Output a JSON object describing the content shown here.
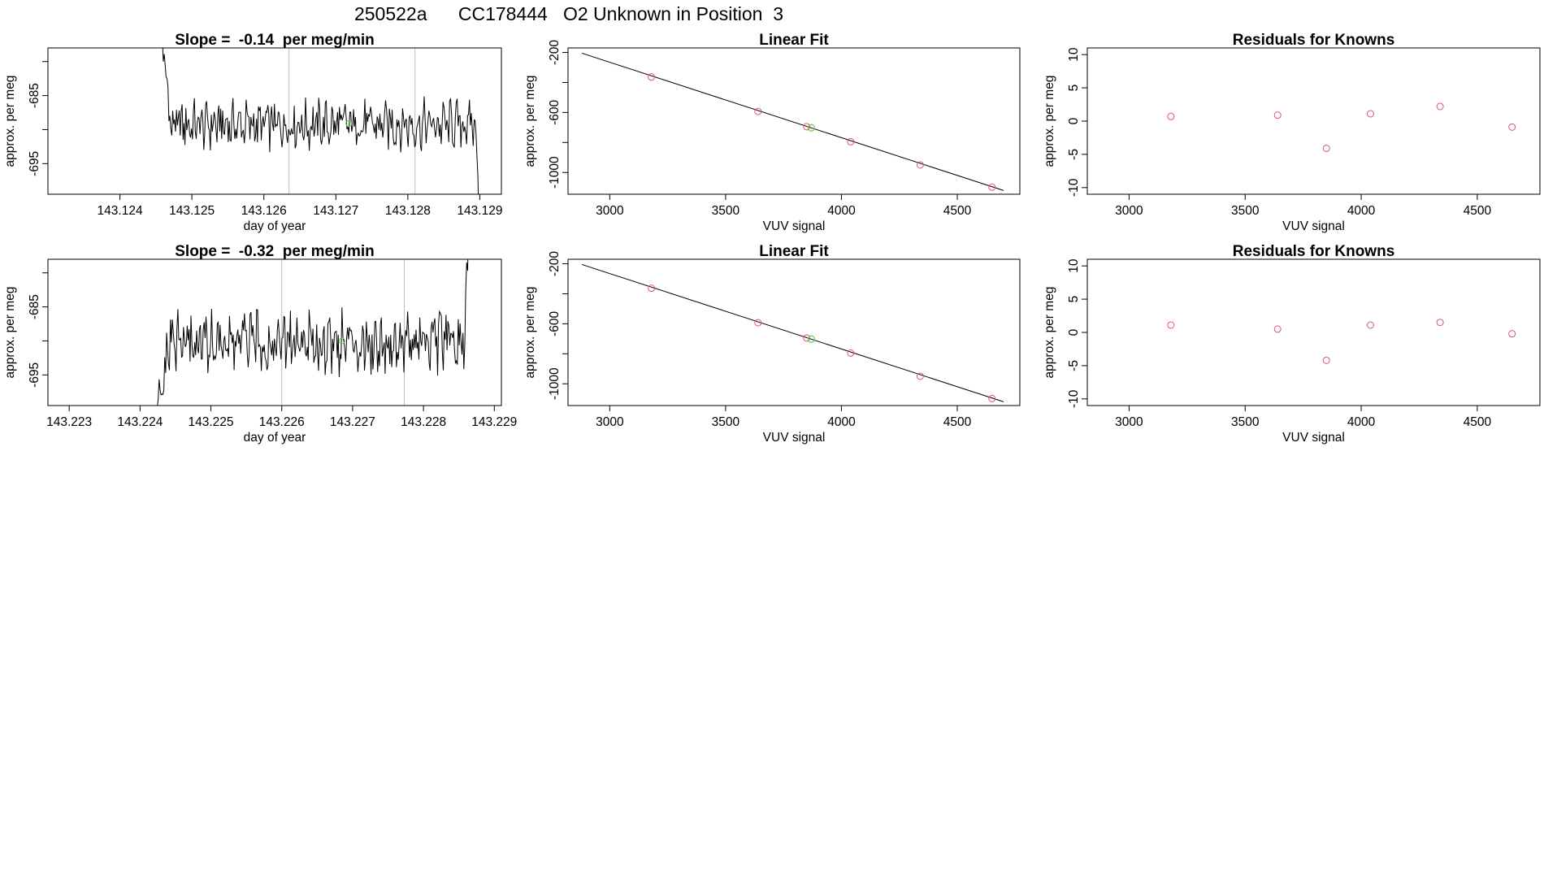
{
  "figure_title": "250522a      CC178444   O2 Unknown in Position  3",
  "colors": {
    "trace": "#000000",
    "known_point": "#df536b",
    "unknown_point": "#61d04f",
    "marker_line": "#bebebe",
    "fit_line": "#000000"
  },
  "chart_data": [
    {
      "id": "ts1",
      "type": "line",
      "title": "Slope =  -0.14  per meg/min",
      "xlabel": "day of year",
      "ylabel": "approx. per meg",
      "xlim": [
        143.123,
        143.1293
      ],
      "ylim": [
        -699.5,
        -678
      ],
      "xticks": [
        143.124,
        143.125,
        143.126,
        143.127,
        143.128,
        143.129
      ],
      "xtick_labels": [
        "143.124",
        "143.125",
        "143.126",
        "143.127",
        "143.128",
        "143.129"
      ],
      "yticks": [
        -695,
        -690,
        -685,
        -680
      ],
      "ytick_labels": [
        "-695",
        "",
        "-685",
        ""
      ],
      "markers_x": [
        143.12635,
        143.1281
      ],
      "series_start": 143.12455,
      "series_end": 143.129,
      "series_mean": -689.3,
      "series_amp": 2.9,
      "unknown_point": {
        "x": 143.12718,
        "y": -689.1
      }
    },
    {
      "id": "fit1",
      "type": "scatter",
      "title": "Linear Fit",
      "xlabel": "VUV signal",
      "ylabel": "approx. per meg",
      "xlim": [
        2820,
        4770
      ],
      "ylim": [
        -1145,
        -170
      ],
      "xticks": [
        3000,
        3500,
        4000,
        4500
      ],
      "xtick_labels": [
        "3000",
        "3500",
        "4000",
        "4500"
      ],
      "yticks": [
        -1000,
        -800,
        -600,
        -400,
        -200
      ],
      "ytick_labels": [
        "-1000",
        "",
        "-600",
        "",
        "-200"
      ],
      "fit_line": {
        "x": [
          2880,
          4700
        ],
        "y": [
          -205,
          -1120
        ]
      },
      "knowns": {
        "x": [
          3180,
          3640,
          3850,
          4040,
          4340,
          4650
        ],
        "y": [
          -363,
          -593,
          -695,
          -795,
          -950,
          -1098
        ]
      },
      "unknown_point": {
        "x": 3870,
        "y": -702
      }
    },
    {
      "id": "res1",
      "type": "scatter",
      "title": "Residuals for Knowns",
      "xlabel": "VUV signal",
      "ylabel": "approx. per meg",
      "xlim": [
        2820,
        4770
      ],
      "ylim": [
        -11,
        11
      ],
      "xticks": [
        3000,
        3500,
        4000,
        4500
      ],
      "xtick_labels": [
        "3000",
        "3500",
        "4000",
        "4500"
      ],
      "yticks": [
        -10,
        -5,
        0,
        5,
        10
      ],
      "ytick_labels": [
        "-10",
        "-5",
        "0",
        "5",
        "10"
      ],
      "knowns": {
        "x": [
          3180,
          3640,
          3850,
          4040,
          4340,
          4650
        ],
        "y": [
          0.7,
          0.9,
          -4.1,
          1.1,
          2.2,
          -0.9
        ]
      }
    },
    {
      "id": "ts2",
      "type": "line",
      "title": "Slope =  -0.32  per meg/min",
      "xlabel": "day of year",
      "ylabel": "approx. per meg",
      "xlim": [
        143.2227,
        143.2291
      ],
      "ylim": [
        -699.5,
        -678
      ],
      "xticks": [
        143.223,
        143.224,
        143.225,
        143.226,
        143.227,
        143.228,
        143.229
      ],
      "xtick_labels": [
        "143.223",
        "143.224",
        "143.225",
        "143.226",
        "143.227",
        "143.228",
        "143.229"
      ],
      "yticks": [
        -695,
        -690,
        -685,
        -680
      ],
      "ytick_labels": [
        "-695",
        "",
        "-685",
        ""
      ],
      "markers_x": [
        143.226,
        143.22773
      ],
      "series_start": 143.22415,
      "series_end": 143.22865,
      "series_mean": -690.2,
      "series_amp": 3.6,
      "unknown_point": {
        "x": 143.22685,
        "y": -690.0
      }
    },
    {
      "id": "fit2",
      "type": "scatter",
      "title": "Linear Fit",
      "xlabel": "VUV signal",
      "ylabel": "approx. per meg",
      "xlim": [
        2820,
        4770
      ],
      "ylim": [
        -1145,
        -170
      ],
      "xticks": [
        3000,
        3500,
        4000,
        4500
      ],
      "xtick_labels": [
        "3000",
        "3500",
        "4000",
        "4500"
      ],
      "yticks": [
        -1000,
        -800,
        -600,
        -400,
        -200
      ],
      "ytick_labels": [
        "-1000",
        "",
        "-600",
        "",
        "-200"
      ],
      "fit_line": {
        "x": [
          2880,
          4700
        ],
        "y": [
          -205,
          -1120
        ]
      },
      "knowns": {
        "x": [
          3180,
          3640,
          3850,
          4040,
          4340,
          4650
        ],
        "y": [
          -363,
          -593,
          -695,
          -795,
          -950,
          -1098
        ]
      },
      "unknown_point": {
        "x": 3870,
        "y": -702
      }
    },
    {
      "id": "res2",
      "type": "scatter",
      "title": "Residuals for Knowns",
      "xlabel": "VUV signal",
      "ylabel": "approx. per meg",
      "xlim": [
        2820,
        4770
      ],
      "ylim": [
        -11,
        11
      ],
      "xticks": [
        3000,
        3500,
        4000,
        4500
      ],
      "xtick_labels": [
        "3000",
        "3500",
        "4000",
        "4500"
      ],
      "yticks": [
        -10,
        -5,
        0,
        5,
        10
      ],
      "ytick_labels": [
        "-10",
        "-5",
        "0",
        "5",
        "10"
      ],
      "knowns": {
        "x": [
          3180,
          3640,
          3850,
          4040,
          4340,
          4650
        ],
        "y": [
          1.1,
          0.5,
          -4.2,
          1.1,
          1.5,
          -0.2
        ]
      }
    }
  ]
}
